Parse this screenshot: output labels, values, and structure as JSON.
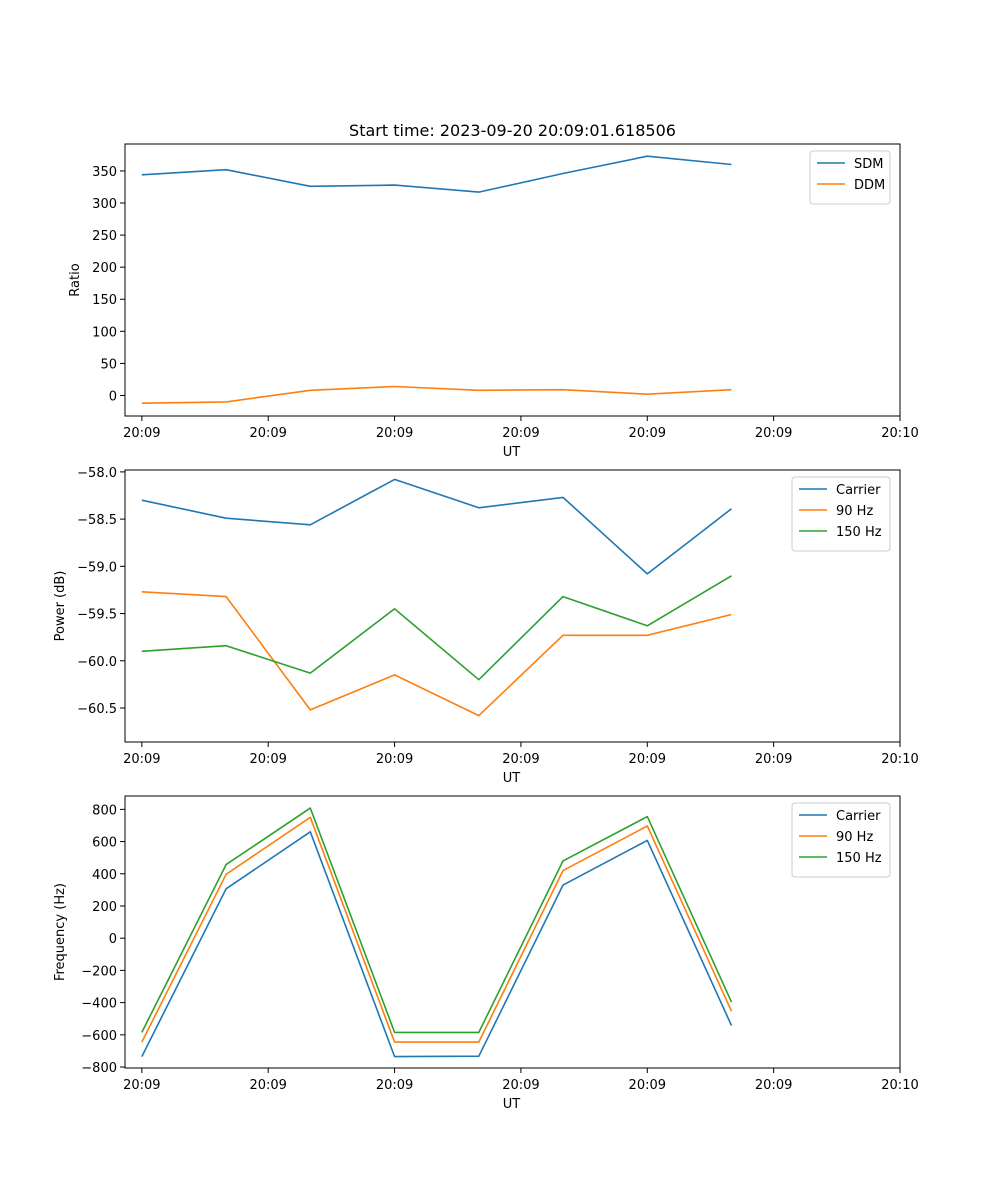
{
  "chart_data": [
    {
      "type": "line",
      "title": "Start time: 2023-09-20 20:09:01.618506",
      "xlabel": "UT",
      "ylabel": "Ratio",
      "x_tick_labels": [
        "20:09",
        "20:09",
        "20:09",
        "20:09",
        "20:09",
        "20:09",
        "20:10"
      ],
      "y_ticks": [
        0,
        50,
        100,
        150,
        200,
        250,
        300,
        350
      ],
      "ylim": [
        -32,
        392
      ],
      "xlim": [
        -0.6,
        8.4
      ],
      "x": [
        0,
        1,
        2,
        3,
        4,
        5,
        6,
        7
      ],
      "legend_position": "top-right",
      "series": [
        {
          "name": "SDM",
          "color": "#1f77b4",
          "values": [
            344,
            352,
            326,
            328,
            317,
            346,
            373,
            360
          ]
        },
        {
          "name": "DDM",
          "color": "#ff7f0e",
          "values": [
            -12,
            -10,
            8,
            14,
            8,
            9,
            2,
            9
          ]
        }
      ]
    },
    {
      "type": "line",
      "title": "",
      "xlabel": "UT",
      "ylabel": "Power (dB)",
      "x_tick_labels": [
        "20:09",
        "20:09",
        "20:09",
        "20:09",
        "20:09",
        "20:09",
        "20:10"
      ],
      "y_ticks": [
        -60.5,
        -60.0,
        -59.5,
        -59.0,
        -58.5,
        -58.0
      ],
      "y_tick_labels": [
        "−60.5",
        "−60.0",
        "−59.5",
        "−59.0",
        "−58.5",
        "−58.0"
      ],
      "ylim": [
        -60.86,
        -57.98
      ],
      "xlim": [
        -0.6,
        8.4
      ],
      "x": [
        0,
        1,
        2,
        3,
        4,
        5,
        6,
        7
      ],
      "legend_position": "top-right",
      "series": [
        {
          "name": "Carrier",
          "color": "#1f77b4",
          "values": [
            -58.3,
            -58.49,
            -58.56,
            -58.08,
            -58.38,
            -58.27,
            -59.08,
            -58.39
          ]
        },
        {
          "name": "90 Hz",
          "color": "#ff7f0e",
          "values": [
            -59.27,
            -59.32,
            -60.52,
            -60.15,
            -60.58,
            -59.73,
            -59.73,
            -59.51
          ]
        },
        {
          "name": "150 Hz",
          "color": "#2ca02c",
          "values": [
            -59.9,
            -59.84,
            -60.13,
            -59.45,
            -60.2,
            -59.32,
            -59.63,
            -59.1
          ]
        }
      ]
    },
    {
      "type": "line",
      "title": "",
      "xlabel": "UT",
      "ylabel": "Frequency (Hz)",
      "x_tick_labels": [
        "20:09",
        "20:09",
        "20:09",
        "20:09",
        "20:09",
        "20:09",
        "20:10"
      ],
      "y_ticks": [
        -800,
        -600,
        -400,
        -200,
        0,
        200,
        400,
        600,
        800
      ],
      "y_tick_labels": [
        "−800",
        "−600",
        "−400",
        "−200",
        "0",
        "200",
        "400",
        "600",
        "800"
      ],
      "ylim": [
        -806,
        883
      ],
      "xlim": [
        -0.6,
        8.4
      ],
      "x": [
        0,
        1,
        2,
        3,
        4,
        5,
        6,
        7
      ],
      "legend_position": "top-right",
      "series": [
        {
          "name": "Carrier",
          "color": "#1f77b4",
          "values": [
            -735,
            307,
            661,
            -735,
            -733,
            330,
            607,
            -543
          ]
        },
        {
          "name": "90 Hz",
          "color": "#ff7f0e",
          "values": [
            -645,
            397,
            751,
            -645,
            -645,
            420,
            697,
            -453
          ]
        },
        {
          "name": "150 Hz",
          "color": "#2ca02c",
          "values": [
            -585,
            457,
            808,
            -585,
            -585,
            480,
            755,
            -397
          ]
        }
      ]
    }
  ]
}
